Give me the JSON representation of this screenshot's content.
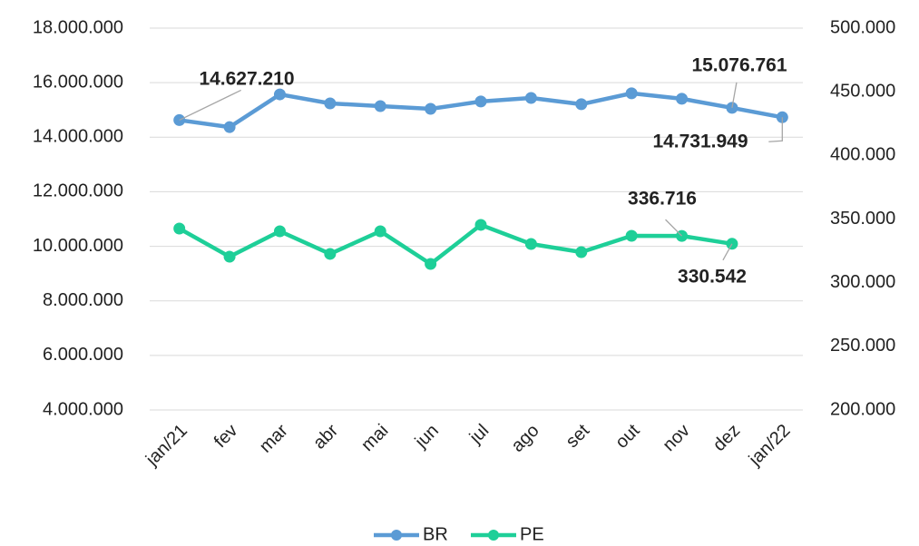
{
  "chart_data": {
    "type": "line",
    "categories": [
      "jan/21",
      "fev",
      "mar",
      "abr",
      "mai",
      "jun",
      "jul",
      "ago",
      "set",
      "out",
      "nov",
      "dez",
      "jan/22"
    ],
    "series": [
      {
        "name": "BR",
        "color": "#5b9bd5",
        "axis": "y",
        "values": [
          14627210,
          14370000,
          15570000,
          15240000,
          15140000,
          15040000,
          15310000,
          15440000,
          15210000,
          15610000,
          15410000,
          15076761,
          14731949
        ],
        "value_labels": [
          "14.627.210",
          null,
          null,
          null,
          null,
          null,
          null,
          null,
          null,
          null,
          null,
          "15.076.761",
          "14.731.949"
        ]
      },
      {
        "name": "PE",
        "color": "#1ecf98",
        "axis": "y2",
        "values": [
          342500,
          320400,
          340400,
          322600,
          340400,
          314700,
          345400,
          330400,
          324000,
          336800,
          336716,
          330542,
          null
        ],
        "value_labels": [
          null,
          null,
          null,
          null,
          null,
          null,
          null,
          null,
          null,
          null,
          "336.716",
          "330.542",
          null
        ]
      }
    ],
    "ylim": [
      4000000,
      18000000
    ],
    "yticks": [
      {
        "value": 4000000,
        "label": "4.000.000"
      },
      {
        "value": 6000000,
        "label": "6.000.000"
      },
      {
        "value": 8000000,
        "label": "8.000.000"
      },
      {
        "value": 10000000,
        "label": "10.000.000"
      },
      {
        "value": 12000000,
        "label": "12.000.000"
      },
      {
        "value": 14000000,
        "label": "14.000.000"
      },
      {
        "value": 16000000,
        "label": "16.000.000"
      },
      {
        "value": 18000000,
        "label": "18.000.000"
      }
    ],
    "y2lim": [
      200000,
      500000
    ],
    "y2ticks": [
      {
        "value": 200000,
        "label": "200.000"
      },
      {
        "value": 250000,
        "label": "250.000"
      },
      {
        "value": 300000,
        "label": "300.000"
      },
      {
        "value": 350000,
        "label": "350.000"
      },
      {
        "value": 400000,
        "label": "400.000"
      },
      {
        "value": 450000,
        "label": "450.000"
      },
      {
        "value": 500000,
        "label": "500.000"
      }
    ],
    "grid": true,
    "legend": "bottom"
  }
}
